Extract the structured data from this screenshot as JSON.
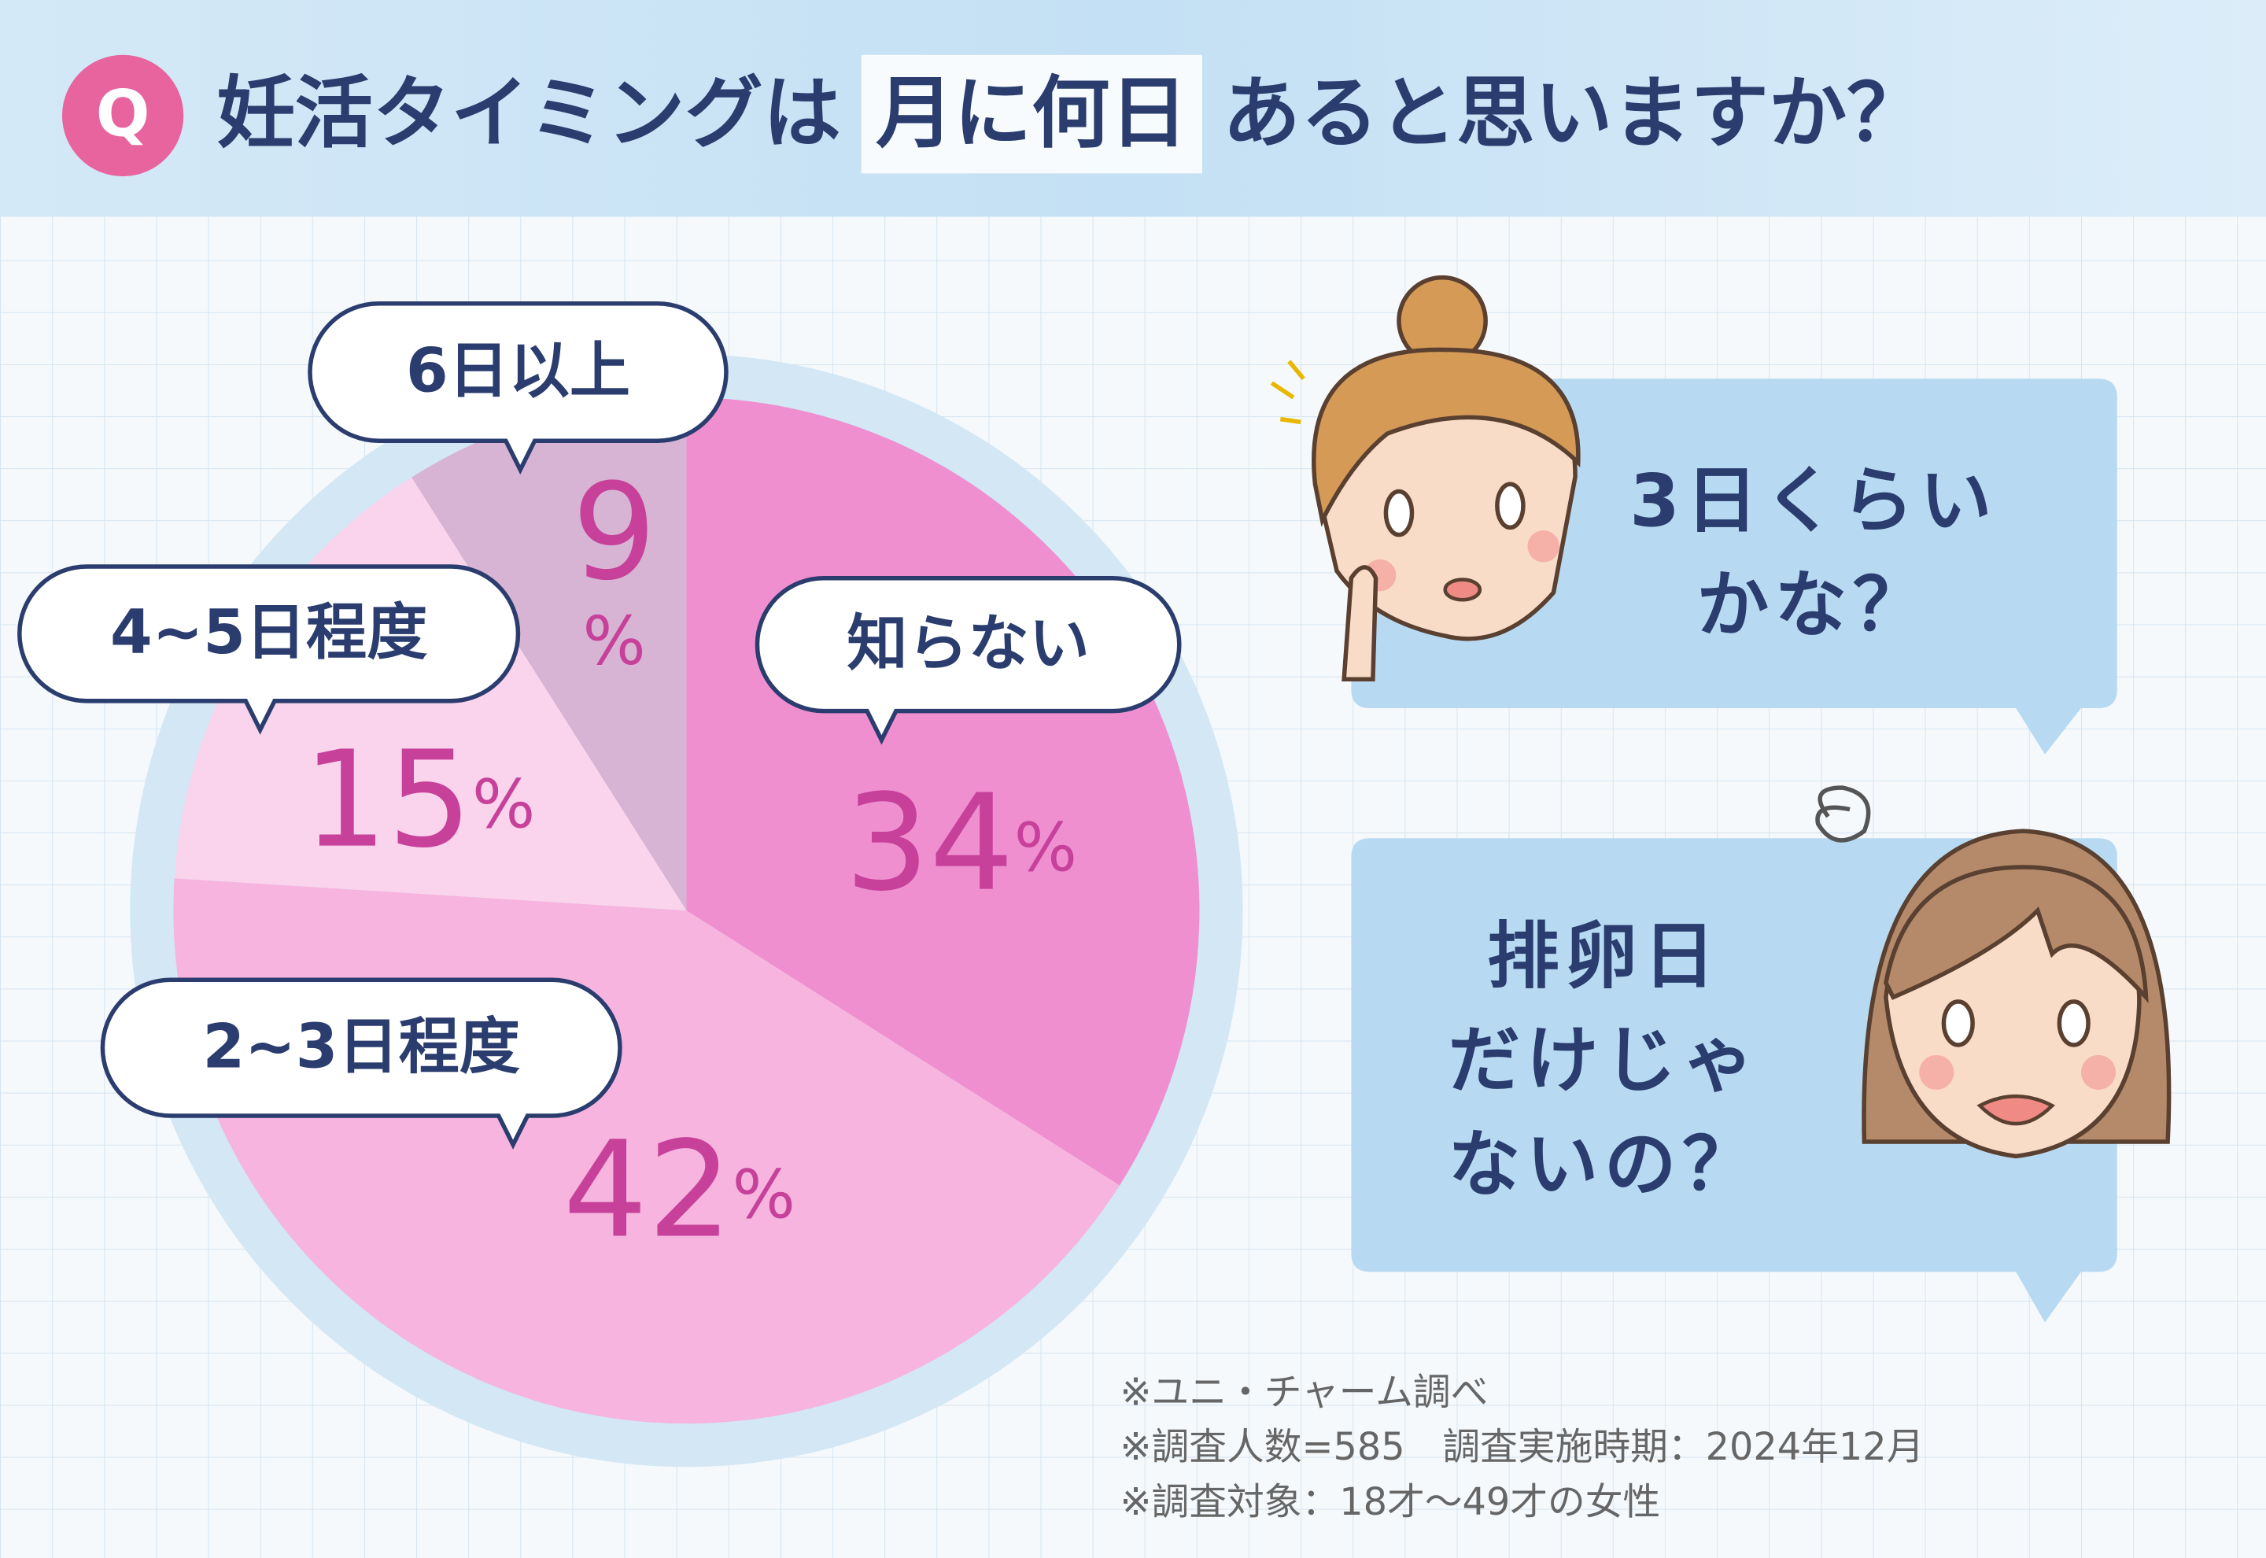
{
  "chart_data": {
    "type": "pie",
    "badge": "Q",
    "title_parts": [
      "妊活タイミングは",
      "月に何日",
      "あると思いますか？"
    ],
    "categories": [
      "知らない",
      "2~3日程度",
      "4~5日程度",
      "6日以上"
    ],
    "values": [
      34,
      42,
      15,
      9
    ],
    "value_labels": [
      "34%",
      "42%",
      "15%",
      "9%"
    ],
    "colors": [
      "#ef8fd0",
      "#f6b4df",
      "#fad4ec",
      "#d8b4d4"
    ],
    "speech": [
      {
        "lines": [
          "3日くらい",
          "かな？"
        ]
      },
      {
        "lines": [
          "排卵日",
          "だけじゃ",
          "ないの？"
        ]
      }
    ],
    "notes": [
      "※ユニ・チャーム調べ",
      "※調査人数=585　調査実施時期：2024年12月",
      "※調査対象：18才～49才の女性"
    ]
  }
}
